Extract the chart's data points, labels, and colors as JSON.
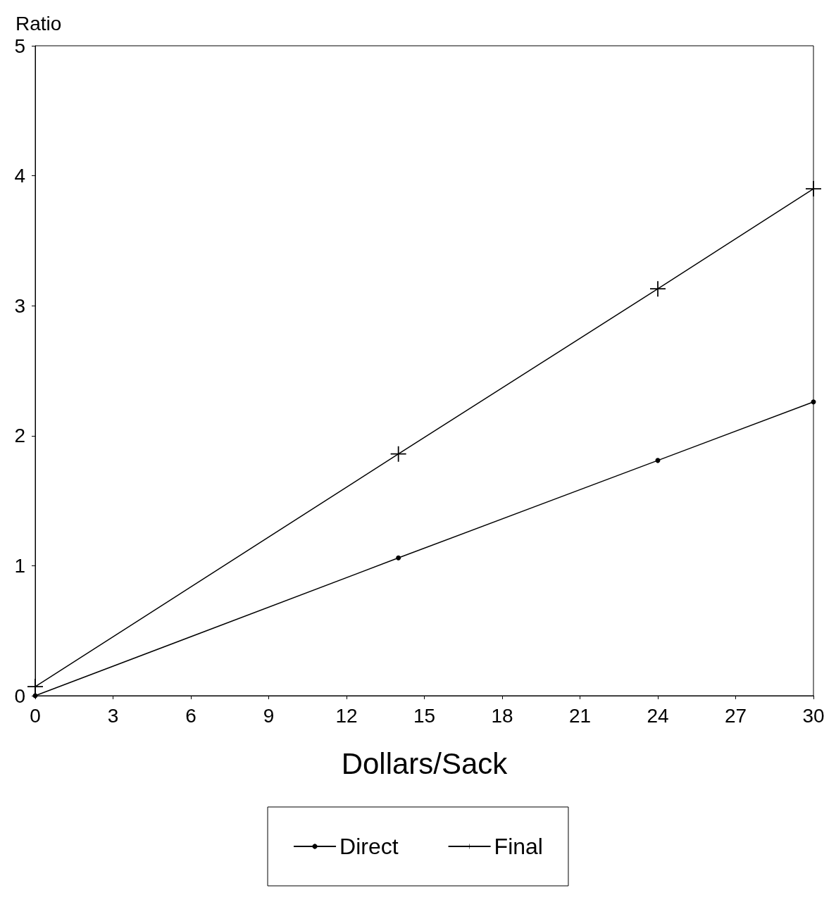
{
  "chart_data": {
    "type": "line",
    "xlabel": "Dollars/Sack",
    "ylabel": "Ratio",
    "xlim": [
      0,
      30
    ],
    "xticks": [
      0,
      3,
      6,
      9,
      12,
      15,
      18,
      21,
      24,
      27,
      30
    ],
    "ylim": [
      0,
      5
    ],
    "yticks": [
      0,
      1,
      2,
      3,
      4,
      5
    ],
    "grid": false,
    "legend": "bottom",
    "series": [
      {
        "name": "Direct",
        "color": "#000000",
        "marker": "circle",
        "x": [
          0,
          14,
          24,
          30
        ],
        "values": [
          0,
          1.06,
          1.81,
          2.26
        ]
      },
      {
        "name": "Final",
        "color": "#000000",
        "marker": "cross",
        "x": [
          0,
          14,
          24,
          30
        ],
        "values": [
          0.07,
          1.86,
          3.13,
          3.9
        ]
      }
    ]
  }
}
